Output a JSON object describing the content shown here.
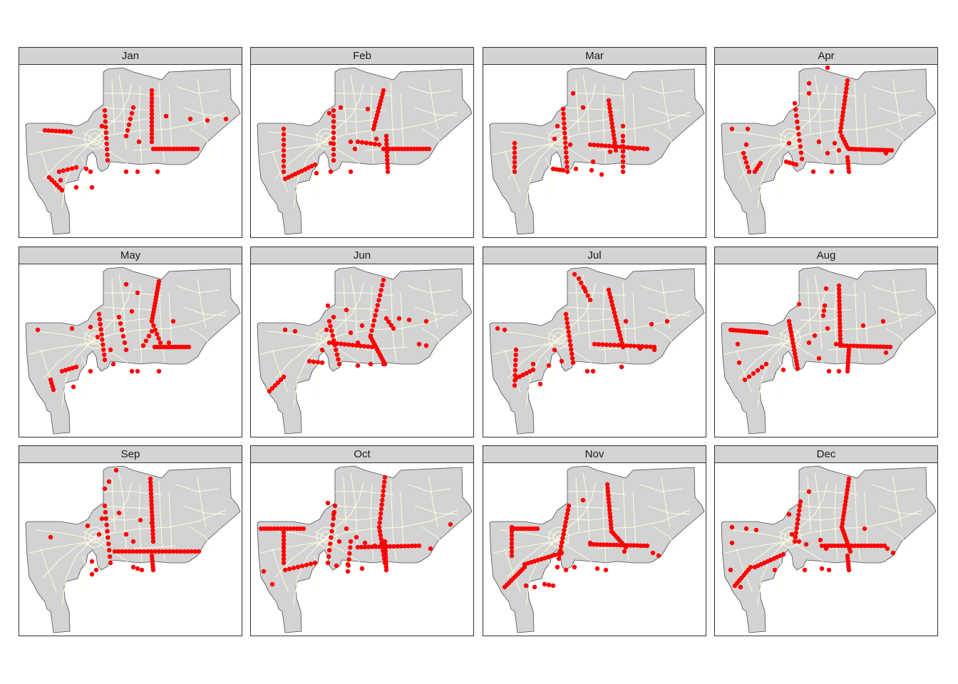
{
  "figure": {
    "layout": "facet-grid",
    "rows": 3,
    "cols": 4,
    "colors": {
      "strip_background": "#d3d3d3",
      "region_fill": "#d3d3d3",
      "region_outline": "#4d4d4d",
      "road_lines": "#fffde0",
      "points": "#ff0000",
      "panel_border": "#333333"
    }
  },
  "panels": [
    {
      "label": "Jan"
    },
    {
      "label": "Feb"
    },
    {
      "label": "Mar"
    },
    {
      "label": "Apr"
    },
    {
      "label": "May"
    },
    {
      "label": "Jun"
    },
    {
      "label": "Jul"
    },
    {
      "label": "Aug"
    },
    {
      "label": "Sep"
    },
    {
      "label": "Oct"
    },
    {
      "label": "Nov"
    },
    {
      "label": "Dec"
    }
  ]
}
